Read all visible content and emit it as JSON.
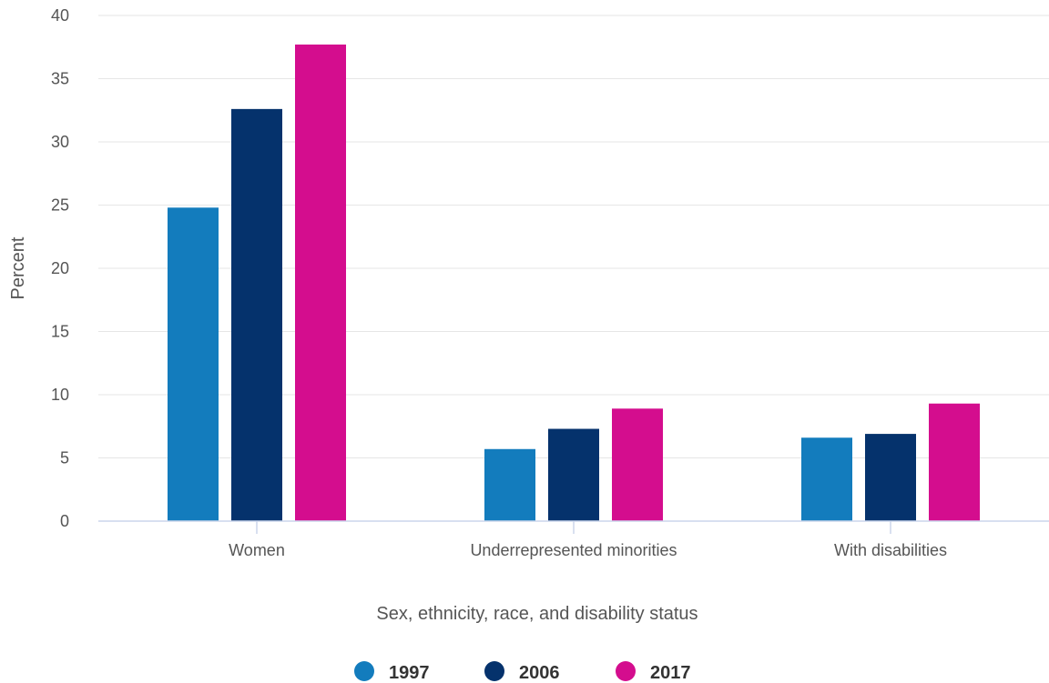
{
  "chart_data": {
    "type": "bar",
    "categories": [
      "Women",
      "Underrepresented minorities",
      "With disabilities"
    ],
    "series": [
      {
        "name": "1997",
        "values": [
          24.8,
          5.7,
          6.6
        ],
        "color": "#137cbd"
      },
      {
        "name": "2006",
        "values": [
          32.6,
          7.3,
          6.9
        ],
        "color": "#05326c"
      },
      {
        "name": "2017",
        "values": [
          37.7,
          8.9,
          9.3
        ],
        "color": "#d40d8e"
      }
    ],
    "title": "",
    "xlabel": "Sex, ethnicity, race, and disability status",
    "ylabel": "Percent",
    "ylim": [
      0,
      40
    ],
    "yticks": [
      0,
      5,
      10,
      15,
      20,
      25,
      30,
      35,
      40
    ],
    "grid": true,
    "legend": "bottom-center"
  }
}
